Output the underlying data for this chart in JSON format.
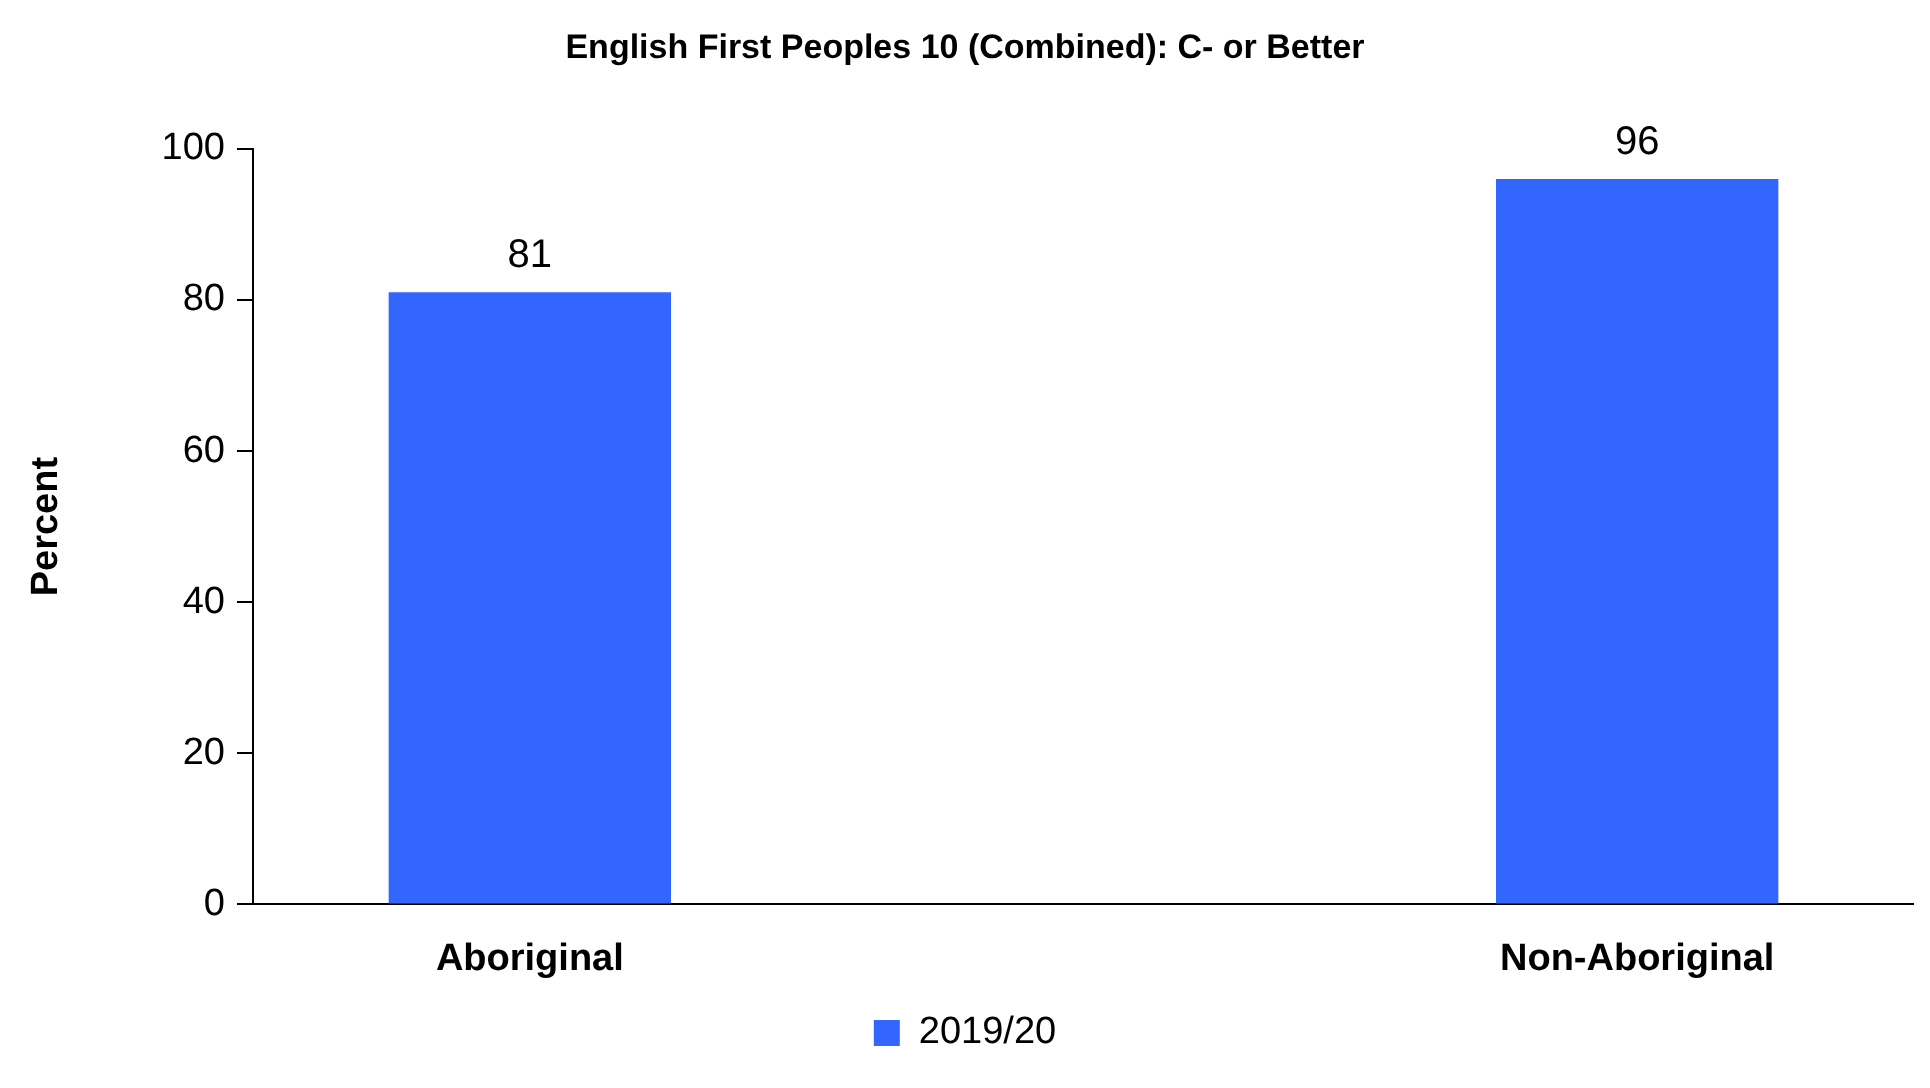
{
  "chart_data": {
    "type": "bar",
    "title": "English First Peoples 10 (Combined): C- or Better",
    "ylabel": "Percent",
    "categories": [
      "Aboriginal",
      null,
      "Non-Aboriginal"
    ],
    "series": [
      {
        "name": "2019/20",
        "color": "#3366ff",
        "values": [
          81,
          null,
          96
        ]
      }
    ],
    "ylim": [
      0,
      100
    ],
    "yticks": [
      0,
      20,
      40,
      60,
      80,
      100
    ],
    "grid": false,
    "legend": "bottom",
    "data_labels": true
  }
}
